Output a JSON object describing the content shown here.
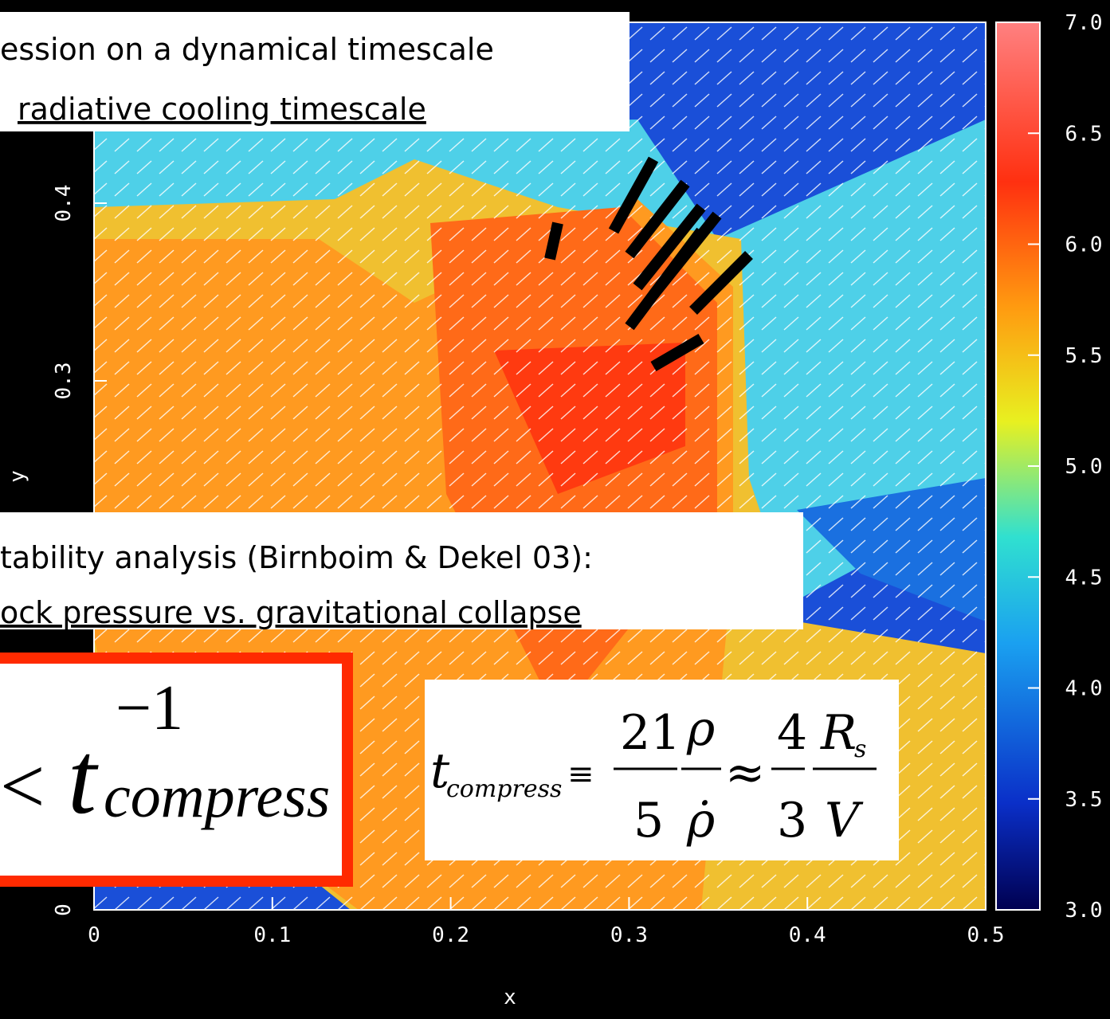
{
  "plot": {
    "x_label": "x",
    "y_label": "y",
    "x_ticks": [
      "0",
      "0.1",
      "0.2",
      "0.3",
      "0.4",
      "0.5"
    ],
    "y_ticks": [
      "0",
      "0.3",
      "0.4"
    ],
    "colorbar_ticks": [
      "3.0",
      "3.5",
      "4.0",
      "4.5",
      "5.0",
      "5.5",
      "6.0",
      "6.5",
      "7.0"
    ]
  },
  "annotations": {
    "top": [
      "ession on a dynamical timescale",
      "radiative cooling timescale"
    ],
    "middle": [
      "tability analysis (Birnboim & Dekel 03):",
      "ock pressure vs. gravitational collapse"
    ]
  },
  "equation_left": {
    "relation": "<",
    "symbol": "t",
    "exponent": "−1",
    "subscript": "compress"
  },
  "equation_right": {
    "symbol": "t",
    "subscript": "compress",
    "equiv": "≡",
    "num1": "21",
    "den1": "5",
    "num2": "ρ",
    "den2": "ρ̇",
    "approx": "≈",
    "num3": "4",
    "den3": "3",
    "num4": "R",
    "num4_sub": "s",
    "den4": "V"
  }
}
